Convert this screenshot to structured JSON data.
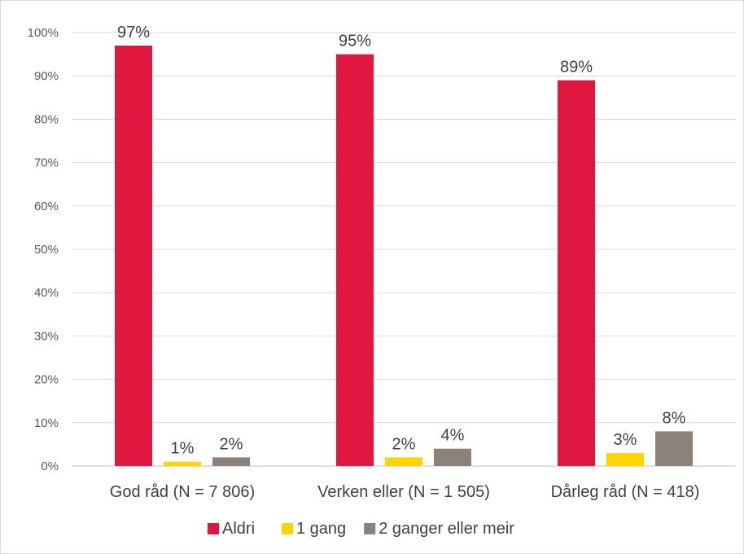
{
  "chart_data": {
    "type": "bar",
    "title": "",
    "xlabel": "",
    "ylabel": "",
    "categories": [
      "God råd (N = 7 806)",
      "Verken eller (N = 1 505)",
      "Dårleg råd (N = 418)"
    ],
    "series": [
      {
        "name": "Aldri",
        "color": "#e0173f",
        "values": [
          97,
          95,
          89
        ],
        "labels": [
          "97%",
          "95%",
          "89%"
        ]
      },
      {
        "name": "1 gang",
        "color": "#ffd500",
        "values": [
          1,
          2,
          3
        ],
        "labels": [
          "1%",
          "2%",
          "3%"
        ]
      },
      {
        "name": "2 ganger eller meir",
        "color": "#8c8279",
        "values": [
          2,
          4,
          8
        ],
        "labels": [
          "2%",
          "4%",
          "8%"
        ]
      }
    ],
    "ylim": [
      0,
      100
    ],
    "yticks": [
      "0%",
      "10%",
      "20%",
      "30%",
      "40%",
      "50%",
      "60%",
      "70%",
      "80%",
      "90%",
      "100%"
    ],
    "grid": true,
    "legend_position": "bottom"
  }
}
